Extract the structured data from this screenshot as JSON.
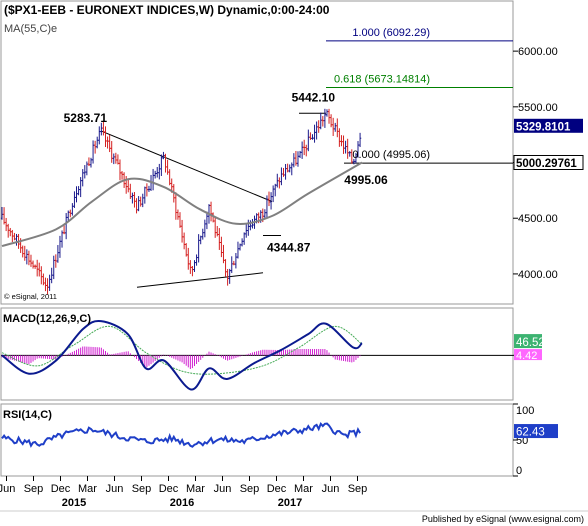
{
  "header": {
    "title": "($PX1-EEB - EURONEXT INDICES,W) Dynamic,0:00-24:00",
    "ma_label": "MA(55,C)e",
    "copyright": "© eSignal, 2011"
  },
  "footer": {
    "published": "Published by eSignal (www.esignal.com)"
  },
  "colors": {
    "bull": "#1a1a8c",
    "bear": "#d42020",
    "ma": "#808080",
    "macd": "#0b1a8f",
    "signal": "#44aa55",
    "hist": "#d020d0",
    "rsi": "#1f3fc8",
    "fib_blue": "#000080",
    "fib_green": "#008000",
    "badge_price": "#000080",
    "badge_macd": "#3cb371",
    "badge_signal": "#ff66ff"
  },
  "chart_data": [
    {
      "type": "candlestick",
      "panel": "price",
      "title": "($PX1-EEB - EURONEXT INDICES,W) Dynamic,0:00-24:00",
      "y_axis": {
        "ticks": [
          4000,
          4500,
          5000,
          5500,
          6000
        ],
        "tick_labels": [
          "4000.00",
          "4500.00",
          "5000.00",
          "5500.00",
          "6000.00"
        ],
        "range": [
          3730,
          6450
        ],
        "side": "right"
      },
      "x_axis": {
        "months": [
          "Jun",
          "Sep",
          "Dec",
          "Mar",
          "Jun",
          "Sep",
          "Dec",
          "Mar",
          "Jun",
          "Sep",
          "Dec",
          "Mar",
          "Jun",
          "Sep"
        ],
        "years": [
          "2015",
          "2016",
          "2017"
        ],
        "range": [
          "2014-05",
          "2017-10"
        ]
      },
      "pivots": [
        {
          "time": "2014-10",
          "price": 3890
        },
        {
          "time": "2015-01",
          "price": 4700
        },
        {
          "time": "2015-04",
          "price": 5283.71
        },
        {
          "time": "2015-08",
          "price": 4600
        },
        {
          "time": "2015-11",
          "price": 5050
        },
        {
          "time": "2016-02",
          "price": 4000
        },
        {
          "time": "2016-04",
          "price": 4620
        },
        {
          "time": "2016-06",
          "price": 3960
        },
        {
          "time": "2016-08",
          "price": 4400
        },
        {
          "time": "2016-10",
          "price": 4560
        },
        {
          "time": "2016-12",
          "price": 4880
        },
        {
          "time": "2017-02",
          "price": 5050
        },
        {
          "time": "2017-05",
          "price": 5442.1
        },
        {
          "time": "2017-08",
          "price": 4995.06
        },
        {
          "time": "2017-09",
          "price": 5329.81
        }
      ],
      "ma": {
        "name": "MA(55,C)e",
        "points": [
          {
            "time": "2014-05",
            "value": 4250
          },
          {
            "time": "2014-11",
            "value": 4400
          },
          {
            "time": "2015-03",
            "value": 4650
          },
          {
            "time": "2015-07",
            "value": 4850
          },
          {
            "time": "2015-11",
            "value": 4780
          },
          {
            "time": "2016-03",
            "value": 4580
          },
          {
            "time": "2016-07",
            "value": 4450
          },
          {
            "time": "2016-11",
            "value": 4520
          },
          {
            "time": "2017-03",
            "value": 4720
          },
          {
            "time": "2017-09",
            "value": 5000.2976
          }
        ]
      },
      "lines": [
        {
          "kind": "trendline",
          "from": {
            "time": "2015-04",
            "price": 5283.71
          },
          "to": {
            "time": "2016-11",
            "price": 4650
          }
        },
        {
          "kind": "trendline",
          "from": {
            "time": "2015-08",
            "price": 3880
          },
          "to": {
            "time": "2016-10",
            "price": 4010
          }
        },
        {
          "kind": "horizontal",
          "price": 5442.1,
          "from": "2017-02",
          "to": "2017-05"
        },
        {
          "kind": "horizontal",
          "price": 4344.87,
          "from": "2016-10",
          "to": "2016-12"
        },
        {
          "kind": "fib",
          "label": "1.000 (6092.29)",
          "price": 6092.29,
          "color": "#000080"
        },
        {
          "kind": "fib",
          "label": "0.618 (5673.14814)",
          "price": 5673.14814,
          "color": "#008000"
        },
        {
          "kind": "fib",
          "label": "0.000 (4995.06)",
          "price": 4995.06,
          "color": "#000000"
        }
      ],
      "annotations": [
        {
          "text": "5283.71",
          "price": 5283.71
        },
        {
          "text": "5442.10",
          "price": 5442.1
        },
        {
          "text": "4344.87",
          "price": 4344.87
        },
        {
          "text": "4995.06",
          "price": 4995.06
        }
      ],
      "badges": [
        {
          "text": "5329.8101",
          "value": 5329.8101
        },
        {
          "text": "5000.29761",
          "value": 5000.29761
        }
      ]
    },
    {
      "type": "line",
      "panel": "macd",
      "title": "MACD(12,26,9,C)",
      "y_axis": {
        "ticks": [
          0
        ],
        "range": [
          -170,
          180
        ]
      },
      "zero_line": true,
      "series": [
        {
          "name": "MACD",
          "points": [
            {
              "time": "2014-05",
              "value": 0
            },
            {
              "time": "2014-08",
              "value": -70
            },
            {
              "time": "2014-11",
              "value": -20
            },
            {
              "time": "2015-02",
              "value": 100
            },
            {
              "time": "2015-04",
              "value": 130
            },
            {
              "time": "2015-07",
              "value": 80
            },
            {
              "time": "2015-09",
              "value": -50
            },
            {
              "time": "2015-11",
              "value": -20
            },
            {
              "time": "2016-02",
              "value": -130
            },
            {
              "time": "2016-04",
              "value": -50
            },
            {
              "time": "2016-06",
              "value": -90
            },
            {
              "time": "2016-09",
              "value": -30
            },
            {
              "time": "2016-12",
              "value": 20
            },
            {
              "time": "2017-03",
              "value": 80
            },
            {
              "time": "2017-05",
              "value": 120
            },
            {
              "time": "2017-08",
              "value": 30
            },
            {
              "time": "2017-09",
              "value": 46.52
            }
          ]
        },
        {
          "name": "Signal",
          "points": [
            {
              "time": "2014-05",
              "value": 10
            },
            {
              "time": "2014-09",
              "value": -40
            },
            {
              "time": "2015-01",
              "value": 40
            },
            {
              "time": "2015-05",
              "value": 110
            },
            {
              "time": "2015-09",
              "value": 10
            },
            {
              "time": "2016-01",
              "value": -60
            },
            {
              "time": "2016-05",
              "value": -70
            },
            {
              "time": "2016-10",
              "value": -40
            },
            {
              "time": "2017-02",
              "value": 30
            },
            {
              "time": "2017-06",
              "value": 110
            },
            {
              "time": "2017-09",
              "value": 42.1
            }
          ]
        }
      ],
      "histogram": {
        "name": "Histogram",
        "value_label": "4.42"
      },
      "badges": [
        {
          "text": "46.52",
          "value": 46.52
        },
        {
          "text": "4.42",
          "value": 4.42
        }
      ]
    },
    {
      "type": "line",
      "panel": "rsi",
      "title": "RSI(14,C)",
      "y_axis": {
        "ticks": [
          0,
          50,
          100
        ],
        "tick_labels": [
          "0",
          "50",
          "100"
        ],
        "range": [
          0,
          100
        ]
      },
      "series": [
        {
          "name": "RSI",
          "points": [
            {
              "time": "2014-05",
              "value": 53
            },
            {
              "time": "2014-09",
              "value": 44
            },
            {
              "time": "2014-12",
              "value": 58
            },
            {
              "time": "2015-03",
              "value": 65
            },
            {
              "time": "2015-06",
              "value": 55
            },
            {
              "time": "2015-09",
              "value": 48
            },
            {
              "time": "2015-12",
              "value": 52
            },
            {
              "time": "2016-02",
              "value": 44
            },
            {
              "time": "2016-05",
              "value": 51
            },
            {
              "time": "2016-08",
              "value": 48
            },
            {
              "time": "2016-11",
              "value": 57
            },
            {
              "time": "2017-02",
              "value": 63
            },
            {
              "time": "2017-05",
              "value": 70
            },
            {
              "time": "2017-07",
              "value": 56
            },
            {
              "time": "2017-09",
              "value": 62.43
            }
          ]
        }
      ],
      "badges": [
        {
          "text": "62.43",
          "value": 62.43
        }
      ]
    }
  ]
}
